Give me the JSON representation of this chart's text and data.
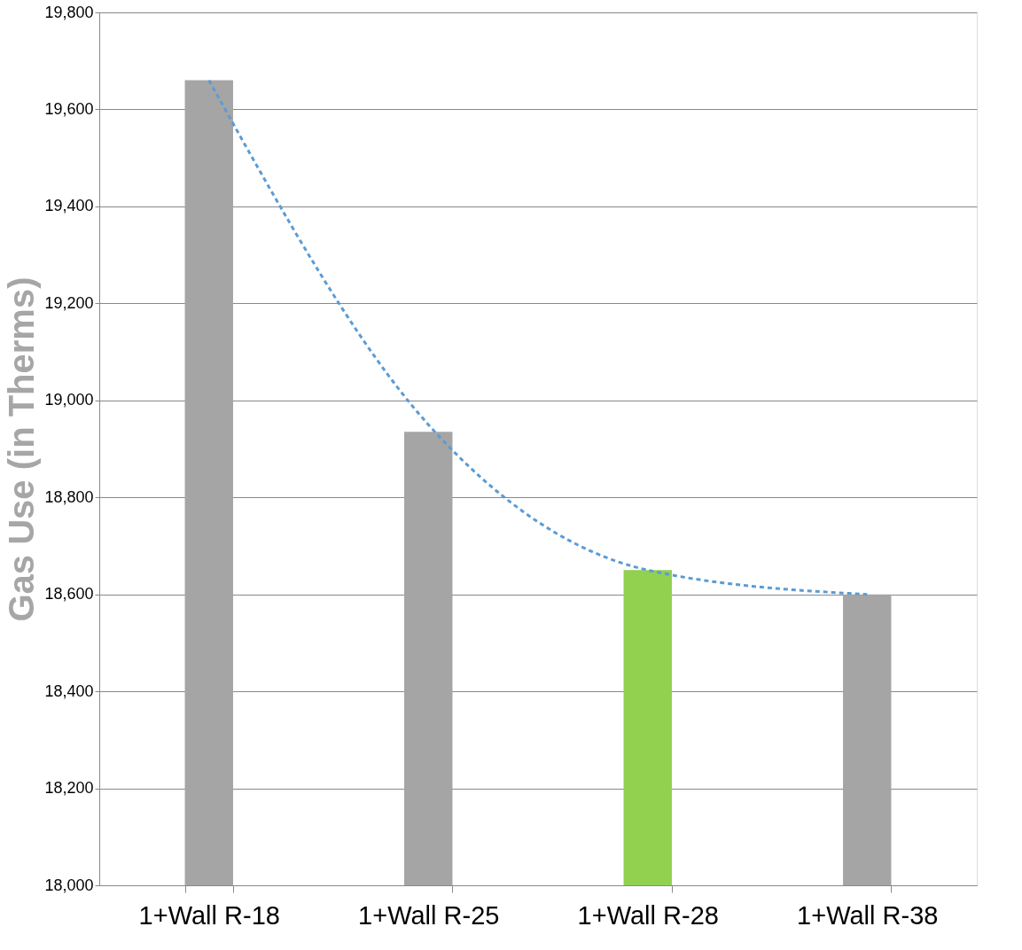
{
  "chart_data": {
    "type": "bar",
    "ylabel": "Gas Use (in Therms)",
    "categories": [
      "1+Wall R-18",
      "1+Wall R-25",
      "1+Wall R-28",
      "1+Wall R-38"
    ],
    "series": [
      {
        "values": [
          19660,
          18935,
          18650,
          18600
        ],
        "colors": [
          "#a5a5a5",
          "#a5a5a5",
          "#92d050",
          "#a5a5a5"
        ]
      },
      {
        "type": "line",
        "values": [
          19660,
          18950,
          18650,
          18600
        ],
        "color": "#5b9bd5",
        "line_style": "dashed",
        "marker": "none"
      }
    ],
    "ylim": [
      18000,
      19800
    ],
    "yticks": [
      {
        "value": 18000,
        "label": "18,000"
      },
      {
        "value": 18200,
        "label": "18,200"
      },
      {
        "value": 18400,
        "label": "18,400"
      },
      {
        "value": 18600,
        "label": "18,600"
      },
      {
        "value": 18800,
        "label": "18,800"
      },
      {
        "value": 19000,
        "label": "19,000"
      },
      {
        "value": 19200,
        "label": "19,200"
      },
      {
        "value": 19400,
        "label": "19,400"
      },
      {
        "value": 19600,
        "label": "19,600"
      },
      {
        "value": 19800,
        "label": "19,800"
      }
    ],
    "grid": "y"
  }
}
